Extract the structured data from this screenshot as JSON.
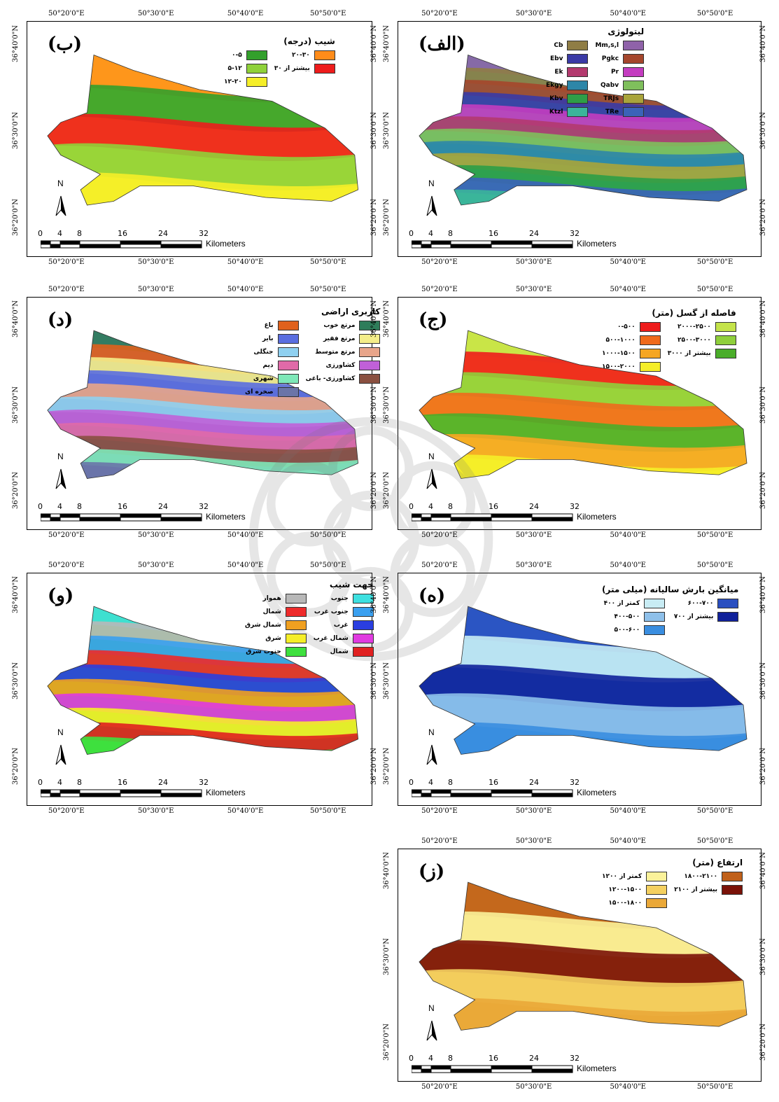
{
  "ticks": {
    "top": [
      "50°20'0\"E",
      "50°30'0\"E",
      "50°40'0\"E",
      "50°50'0\"E"
    ],
    "side": [
      "36°40'0\"N",
      "36°30'0\"N",
      "36°20'0\"N"
    ]
  },
  "scale": {
    "numbers": [
      "0",
      "4",
      "8",
      "16",
      "24",
      "32"
    ],
    "unit": "Kilometers"
  },
  "north_label": "N",
  "panels": [
    {
      "letter": "(الف)",
      "legend_title": "لیتولوژی",
      "items": [
        {
          "label": "Mm,s,l",
          "color": "#8f62a9"
        },
        {
          "label": "Cb",
          "color": "#8f7d45"
        },
        {
          "label": "Pgkc",
          "color": "#a5462c"
        },
        {
          "label": "Ebv",
          "color": "#3a3aa6"
        },
        {
          "label": "Pr",
          "color": "#c43cc0"
        },
        {
          "label": "Ek",
          "color": "#b33a6e"
        },
        {
          "label": "Qabv",
          "color": "#7fbf5c"
        },
        {
          "label": "Ekgy",
          "color": "#2d86a8"
        },
        {
          "label": "TRJs",
          "color": "#a9a43b"
        },
        {
          "label": "Kbv",
          "color": "#2e9e47"
        },
        {
          "label": "TRe",
          "color": "#3b63b8"
        },
        {
          "label": "Ktzl",
          "color": "#3bb59a"
        }
      ]
    },
    {
      "letter": "(ب)",
      "legend_title": "شیب (درجه)",
      "items": [
        {
          "label": "۲۰-۳۰",
          "color": "#ff8c1a"
        },
        {
          "label": "۰-۵",
          "color": "#33a02c"
        },
        {
          "label": "بیشتر از ۳۰",
          "color": "#ee1c1c"
        },
        {
          "label": "۵-۱۲",
          "color": "#8fd13a"
        },
        {
          "label": "",
          "color": ""
        },
        {
          "label": "۱۲-۲۰",
          "color": "#f5ee28"
        }
      ]
    },
    {
      "letter": "(ج)",
      "legend_title": "فاصله از گسل (متر)",
      "items": [
        {
          "label": "۲۰۰۰-۲۵۰۰",
          "color": "#c4e34a"
        },
        {
          "label": "۰-۵۰۰",
          "color": "#ee1c1c"
        },
        {
          "label": "۲۵۰۰-۳۰۰۰",
          "color": "#8fcf3c"
        },
        {
          "label": "۵۰۰-۱۰۰۰",
          "color": "#f06a1c"
        },
        {
          "label": "بیشتر از ۳۰۰۰",
          "color": "#4aad2a"
        },
        {
          "label": "۱۰۰۰-۱۵۰۰",
          "color": "#f5a623"
        },
        {
          "label": "",
          "color": ""
        },
        {
          "label": "۱۵۰۰-۲۰۰۰",
          "color": "#f5ee28"
        }
      ]
    },
    {
      "letter": "(د)",
      "legend_title": "کاربری اراضی",
      "items": [
        {
          "label": "مرتع خوب",
          "color": "#2e7d5a"
        },
        {
          "label": "باغ",
          "color": "#e0611c"
        },
        {
          "label": "مرتع فقیر",
          "color": "#f4ee8a"
        },
        {
          "label": "بایر",
          "color": "#5a6ee0"
        },
        {
          "label": "مرتع متوسط",
          "color": "#e8a58a"
        },
        {
          "label": "جنگلی",
          "color": "#8fd0f0"
        },
        {
          "label": "کشاورزی",
          "color": "#c060d8"
        },
        {
          "label": "دیم",
          "color": "#e06aa8"
        },
        {
          "label": "کشاورزی- باغی",
          "color": "#8a5040"
        },
        {
          "label": "شهری",
          "color": "#7ee8b8"
        },
        {
          "label": "",
          "color": ""
        },
        {
          "label": "صخره ای",
          "color": "#6a74a8"
        }
      ]
    },
    {
      "letter": "(ه)",
      "legend_title": "میانگین بارش سالیانه (میلی متر)",
      "items": [
        {
          "label": "۶۰۰-۷۰۰",
          "color": "#2a4fc0"
        },
        {
          "label": "کمتر از ۴۰۰",
          "color": "#c8ecf4"
        },
        {
          "label": "بیشتر از ۷۰۰",
          "color": "#10219a"
        },
        {
          "label": "۴۰۰-۵۰۰",
          "color": "#8ec0ea"
        },
        {
          "label": "",
          "color": ""
        },
        {
          "label": "۵۰۰-۶۰۰",
          "color": "#3a8ee0"
        }
      ]
    },
    {
      "letter": "(و)",
      "legend_title": "جهت شیب",
      "items": [
        {
          "label": "جنوب",
          "color": "#3ee0e0"
        },
        {
          "label": "هموار",
          "color": "#b8b8b8"
        },
        {
          "label": "جنوب غرب",
          "color": "#3aa0f0"
        },
        {
          "label": "شمال",
          "color": "#ee2a2a"
        },
        {
          "label": "غرب",
          "color": "#2a3ee0"
        },
        {
          "label": "شمال شرق",
          "color": "#f0a020"
        },
        {
          "label": "شمال غرب",
          "color": "#e03ae0"
        },
        {
          "label": "شرق",
          "color": "#f5ee28"
        },
        {
          "label": "شمال",
          "color": "#e02020"
        },
        {
          "label": "جنوب شرق",
          "color": "#3ee03e"
        }
      ]
    },
    {
      "letter": "(ز)",
      "legend_title": "ارتفاع (متر)",
      "items": [
        {
          "label": "۱۸۰۰-۲۱۰۰",
          "color": "#c0601a"
        },
        {
          "label": "کمتر از ۱۲۰۰",
          "color": "#fbf29a"
        },
        {
          "label": "بیشتر از ۲۱۰۰",
          "color": "#7a1208"
        },
        {
          "label": "۱۲۰۰-۱۵۰۰",
          "color": "#f4d060"
        },
        {
          "label": "",
          "color": ""
        },
        {
          "label": "۱۵۰۰-۱۸۰۰",
          "color": "#eaa838"
        }
      ]
    }
  ]
}
